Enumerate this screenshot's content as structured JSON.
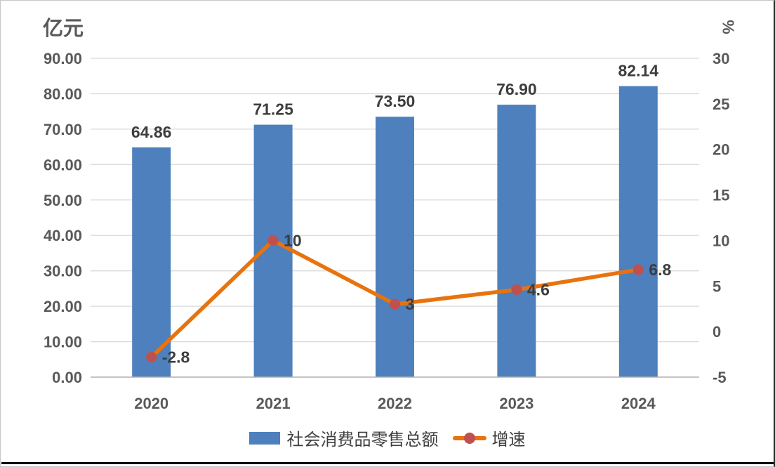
{
  "chart_data": {
    "type": "combo-bar-line",
    "axis_titles": {
      "primary": "亿元",
      "secondary": "%"
    },
    "categories": [
      "2020",
      "2021",
      "2022",
      "2023",
      "2024"
    ],
    "series": [
      {
        "name": "社会消费品零售总额",
        "type": "bar",
        "axis": "primary",
        "values": [
          64.86,
          71.25,
          73.5,
          76.9,
          82.14
        ],
        "labels": [
          "64.86",
          "71.25",
          "73.50",
          "76.90",
          "82.14"
        ],
        "color": "#4d80bc"
      },
      {
        "name": "增速",
        "type": "line",
        "axis": "secondary",
        "values": [
          -2.8,
          10,
          3,
          4.6,
          6.8
        ],
        "labels": [
          "-2.8",
          "10",
          "3",
          "4.6",
          "6.8"
        ],
        "color": "#e8730e",
        "marker_color": "#c0504d"
      }
    ],
    "primary_axis": {
      "min": 0,
      "max": 90,
      "tick_values": [
        90,
        80,
        70,
        60,
        50,
        40,
        30,
        20,
        10,
        0
      ],
      "ticks": [
        "90.00",
        "80.00",
        "70.00",
        "60.00",
        "50.00",
        "40.00",
        "30.00",
        "20.00",
        "10.00",
        "0.00"
      ]
    },
    "secondary_axis": {
      "min": -5,
      "max": 30,
      "tick_values": [
        30,
        25,
        20,
        15,
        10,
        5,
        0,
        -5
      ],
      "ticks": [
        "30",
        "25",
        "20",
        "15",
        "10",
        "5",
        "0",
        "-5"
      ]
    },
    "grid": true,
    "legend_position": "bottom",
    "colors": {
      "grid_line": "#dadada",
      "axis_line": "#b3b3b3",
      "tick_text": "#595959",
      "data_label_text": "#3d3d3d",
      "background": "#ffffff"
    }
  }
}
